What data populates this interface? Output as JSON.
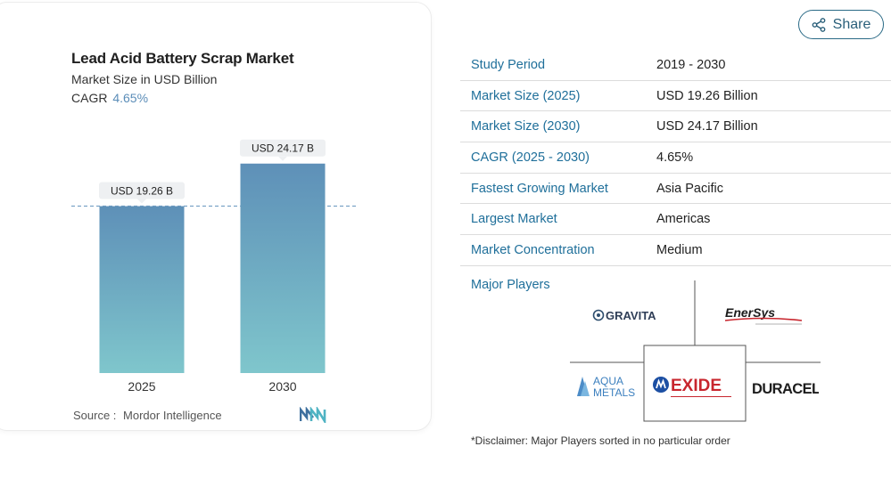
{
  "card": {
    "title": "Lead Acid Battery Scrap Market",
    "subtitle": "Market Size in USD Billion",
    "cagr_label": "CAGR",
    "cagr_value": "4.65%",
    "source_label": "Source :",
    "source_value": "Mordor Intelligence",
    "brand_logo": "mordor-intelligence-logo"
  },
  "chart_data": {
    "type": "bar",
    "categories": [
      "2025",
      "2030"
    ],
    "values": [
      19.26,
      24.17
    ],
    "data_labels": [
      "USD 19.26 B",
      "USD 24.17 B"
    ],
    "ylim": [
      0,
      30
    ],
    "grid": false,
    "reference_line": {
      "style": "dashed",
      "at_value": 19.26
    },
    "colors": {
      "bar_top": "#5e90b8",
      "bar_bottom": "#7fc6cc",
      "ref_line": "#7aa3c6"
    }
  },
  "share": {
    "label": "Share",
    "icon": "share-icon"
  },
  "info_table": [
    {
      "label": "Study Period",
      "value": "2019 - 2030"
    },
    {
      "label": "Market Size (2025)",
      "value": "USD 19.26 Billion"
    },
    {
      "label": "Market Size (2030)",
      "value": "USD 24.17 Billion"
    },
    {
      "label": "CAGR (2025 - 2030)",
      "value": "4.65%"
    },
    {
      "label": "Fastest Growing Market",
      "value": "Asia Pacific"
    },
    {
      "label": "Largest Market",
      "value": "Americas"
    },
    {
      "label": "Market Concentration",
      "value": "Medium"
    }
  ],
  "players": {
    "title": "Major Players",
    "logos": [
      {
        "name": "GRAVITA",
        "icon": "gravita-logo"
      },
      {
        "name": "EnerSys",
        "icon": "enersys-logo"
      },
      {
        "name": "AQUA METALS",
        "icon": "aqua-metals-logo"
      },
      {
        "name": "EXIDE",
        "icon": "exide-logo"
      },
      {
        "name": "DURACELL",
        "icon": "duracell-logo"
      }
    ]
  },
  "disclaimer": "*Disclaimer: Major Players sorted in no particular order"
}
